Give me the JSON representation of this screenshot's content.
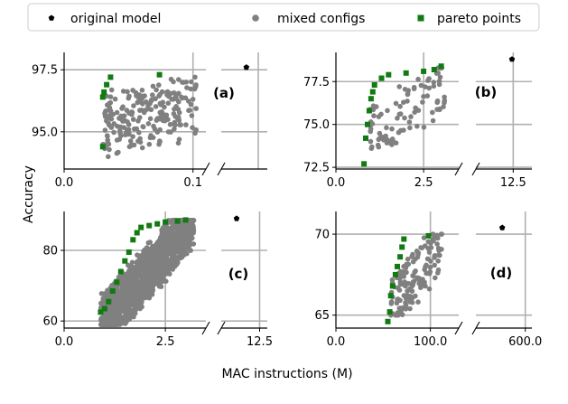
{
  "chart_data": {
    "type": "scatter",
    "xlabel": "MAC instructions (M)",
    "ylabel": "Accuracy",
    "legend": {
      "location": "top",
      "entries": [
        {
          "name": "original model",
          "color": "#000000",
          "marker": "pentagon"
        },
        {
          "name": "mixed configs",
          "color": "#808080",
          "marker": "circle"
        },
        {
          "name": "pareto points",
          "color": "#117a11",
          "marker": "square"
        }
      ]
    },
    "panels": [
      {
        "label": "(a)",
        "x_left_range": [
          0,
          0.11
        ],
        "x_right_range": [
          0.25,
          0.36
        ],
        "ylim": [
          93.5,
          98.2
        ],
        "x_ticks_left": [
          {
            "v": 0,
            "label": "0.0"
          },
          {
            "v": 0.1,
            "label": "0.1"
          }
        ],
        "x_ticks_right": [],
        "y_ticks": [
          {
            "v": 95.0,
            "label": "95.0"
          },
          {
            "v": 97.5,
            "label": "97.5"
          }
        ],
        "original": {
          "x": 0.31,
          "y": 97.6
        },
        "pareto": [
          [
            0.03,
            94.4
          ],
          [
            0.03,
            96.4
          ],
          [
            0.031,
            96.6
          ],
          [
            0.033,
            96.9
          ],
          [
            0.036,
            97.2
          ],
          [
            0.074,
            97.3
          ]
        ],
        "cloud": {
          "n": 220,
          "x_range": [
            0.03,
            0.103
          ],
          "y_range": [
            94.0,
            97.2
          ],
          "tilt": 0.25,
          "seed": 11
        }
      },
      {
        "label": "(b)",
        "x_left_range": [
          0,
          3.5
        ],
        "x_right_range": [
          9.5,
          14
        ],
        "ylim": [
          72.4,
          79.2
        ],
        "x_ticks_left": [
          {
            "v": 0,
            "label": "0.0"
          },
          {
            "v": 2.5,
            "label": "2.5"
          }
        ],
        "x_ticks_right": [
          {
            "v": 12.5,
            "label": "12.5"
          }
        ],
        "y_ticks": [
          {
            "v": 72.5,
            "label": "72.5"
          },
          {
            "v": 75.0,
            "label": "75.0"
          },
          {
            "v": 77.5,
            "label": "77.5"
          }
        ],
        "original": {
          "x": 12.4,
          "y": 78.8
        },
        "pareto": [
          [
            0.8,
            72.7
          ],
          [
            0.85,
            74.2
          ],
          [
            0.9,
            75.0
          ],
          [
            0.95,
            75.8
          ],
          [
            1.0,
            76.5
          ],
          [
            1.05,
            76.9
          ],
          [
            1.1,
            77.3
          ],
          [
            1.3,
            77.7
          ],
          [
            1.5,
            77.9
          ],
          [
            2.0,
            78.0
          ],
          [
            2.5,
            78.1
          ],
          [
            2.8,
            78.2
          ],
          [
            3.0,
            78.4
          ]
        ],
        "cloud": {
          "n": 90,
          "x_range": [
            0.9,
            3.1
          ],
          "y_range": [
            73.6,
            78.3
          ],
          "tilt": 0.6,
          "seed": 23
        }
      },
      {
        "label": "(c)",
        "x_left_range": [
          0,
          3.5
        ],
        "x_right_range": [
          10,
          13
        ],
        "ylim": [
          58,
          91
        ],
        "x_ticks_left": [
          {
            "v": 0,
            "label": "0.0"
          },
          {
            "v": 2.5,
            "label": "2.5"
          }
        ],
        "x_ticks_right": [
          {
            "v": 12.5,
            "label": "12.5"
          }
        ],
        "y_ticks": [
          {
            "v": 60,
            "label": "60"
          },
          {
            "v": 80,
            "label": "80"
          }
        ],
        "original": {
          "x": 11.0,
          "y": 89.0
        },
        "pareto": [
          [
            0.9,
            62.5
          ],
          [
            1.0,
            63.5
          ],
          [
            1.1,
            65.5
          ],
          [
            1.2,
            68.5
          ],
          [
            1.3,
            71.0
          ],
          [
            1.4,
            74.0
          ],
          [
            1.5,
            77.0
          ],
          [
            1.6,
            79.5
          ],
          [
            1.7,
            83.0
          ],
          [
            1.8,
            85.0
          ],
          [
            1.9,
            86.5
          ],
          [
            2.1,
            87.0
          ],
          [
            2.3,
            87.5
          ],
          [
            2.5,
            88.0
          ],
          [
            2.8,
            88.3
          ],
          [
            3.0,
            88.6
          ]
        ],
        "cloud": {
          "n": 1300,
          "x_range": [
            0.9,
            3.2
          ],
          "y_range": [
            59.0,
            88.5
          ],
          "tilt": 1.0,
          "seed": 37
        }
      },
      {
        "label": "(d)",
        "x_left_range": [
          0,
          130
        ],
        "x_right_range": [
          450,
          620
        ],
        "ylim": [
          64.2,
          71.4
        ],
        "x_ticks_left": [
          {
            "v": 0,
            "label": "0.0"
          },
          {
            "v": 100,
            "label": "100.0"
          }
        ],
        "x_ticks_right": [
          {
            "v": 600,
            "label": "600.0"
          }
        ],
        "y_ticks": [
          {
            "v": 65,
            "label": "65"
          },
          {
            "v": 70,
            "label": "70"
          }
        ],
        "original": {
          "x": 530,
          "y": 70.4
        },
        "pareto": [
          [
            55,
            64.6
          ],
          [
            57,
            65.2
          ],
          [
            58,
            66.2
          ],
          [
            60,
            66.8
          ],
          [
            63,
            67.5
          ],
          [
            65,
            68.0
          ],
          [
            68,
            68.6
          ],
          [
            70,
            69.2
          ],
          [
            72,
            69.7
          ],
          [
            98,
            69.9
          ]
        ],
        "cloud": {
          "n": 140,
          "x_range": [
            58,
            112
          ],
          "y_range": [
            65.0,
            70.0
          ],
          "tilt": 0.7,
          "seed": 51
        }
      }
    ]
  }
}
